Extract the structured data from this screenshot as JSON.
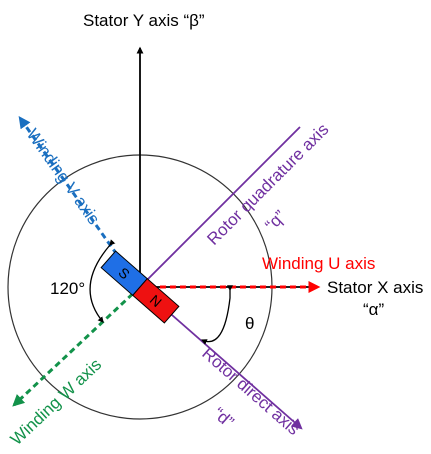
{
  "colors": {
    "stator": "#000000",
    "winding_u": "#ff0000",
    "winding_v": "#1a6fc0",
    "winding_w": "#12924a",
    "rotor": "#7030a0",
    "magnet_s": "#1f6fe6",
    "magnet_n": "#ee1111",
    "circle": "#333333"
  },
  "labels": {
    "stator_y": "Stator Y axis “β”",
    "stator_x": "Stator X axis",
    "alpha": "“α”",
    "winding_u": "Winding U axis",
    "winding_v": "Winding V axis",
    "winding_w": "Winding W axis",
    "rotor_q": "Rotor quadrature axis",
    "q_symbol": "“q”",
    "rotor_d": "Rotor direct axis",
    "d_symbol": "“d”",
    "angle_120": "120°",
    "theta": "θ",
    "south": "S",
    "north": "N"
  }
}
